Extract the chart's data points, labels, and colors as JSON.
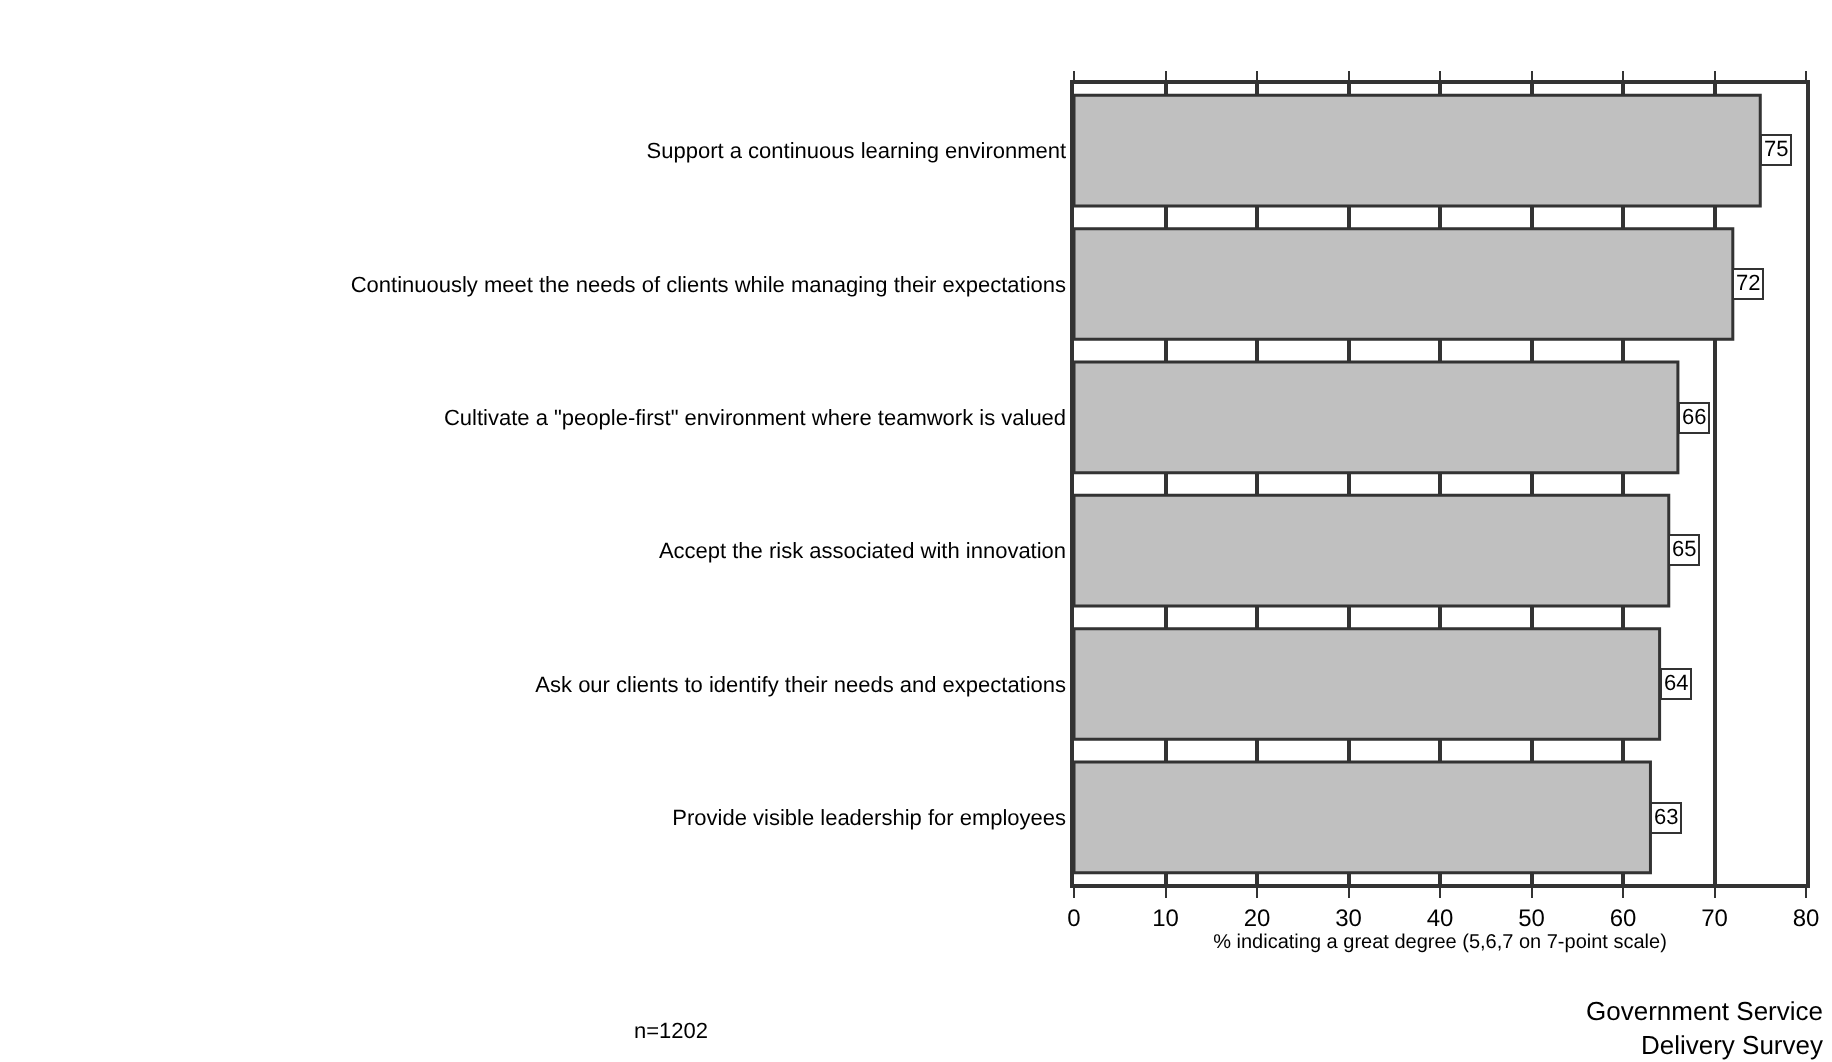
{
  "chart_data": {
    "type": "bar",
    "orientation": "horizontal",
    "categories": [
      "Support a continuous learning environment",
      "Continuously meet the needs of clients while managing their expectations",
      "Cultivate a \"people-first\" environment where teamwork is valued",
      "Accept the risk associated with innovation",
      "Ask our clients to identify their needs and expectations",
      "Provide visible leadership for employees"
    ],
    "values": [
      75,
      72,
      66,
      65,
      64,
      63
    ],
    "color": "#c0c0c0",
    "data_labels": true,
    "xlabel": "% indicating a great degree (5,6,7 on 7-point scale)",
    "xlim": [
      0,
      80
    ],
    "xticks": [
      0,
      10,
      20,
      30,
      40,
      50,
      60,
      70,
      80
    ],
    "grid": "x",
    "annotations": [
      "n=1202",
      "Government Service\nDelivery Survey"
    ]
  }
}
